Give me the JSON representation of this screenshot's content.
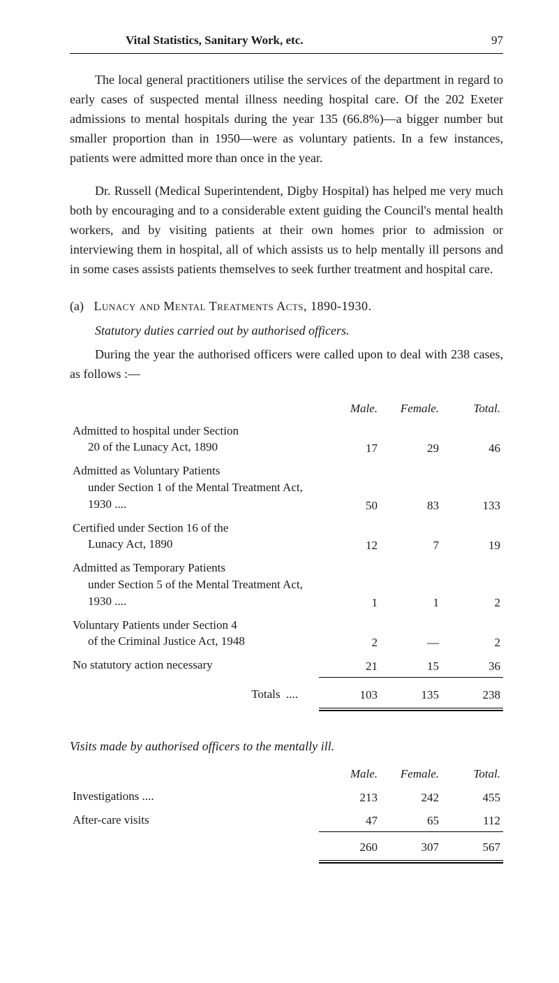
{
  "header": {
    "running_title": "Vital Statistics, Sanitary Work, etc.",
    "page_number": "97"
  },
  "paragraphs": {
    "p1": "The local general practitioners utilise the services of the department in regard to early cases of suspected mental illness needing hospital care. Of the 202 Exeter admissions to mental hospitals during the year 135 (66.8%)—a bigger number but smaller proportion than in 1950—were as voluntary patients. In a few instances, patients were admitted more than once in the year.",
    "p2": "Dr. Russell (Medical Superintendent, Digby Hospital) has helped me very much both by encouraging and to a considerable extent guiding the Council's mental health workers, and by visiting patients at their own homes prior to admission or interviewing them in hospital, all of which assists us to help mentally ill persons and in some cases assists patients themselves to seek further treatment and hospital care."
  },
  "section_a": {
    "label": "(a)",
    "title": "Lunacy and Mental Treatments Acts, 1890-1930.",
    "subtitle": "Statutory duties carried out by authorised officers.",
    "intro": "During the year the authorised officers were called upon to deal with 238 cases, as follows :—",
    "columns": {
      "male": "Male.",
      "female": "Female.",
      "total": "Total."
    },
    "rows": [
      {
        "desc_l1": "Admitted to hospital under Section",
        "desc_l2": "20 of the Lunacy Act, 1890",
        "male": "17",
        "female": "29",
        "total": "46"
      },
      {
        "desc_l1": "Admitted as Voluntary Patients",
        "desc_l2": "under Section 1 of the Mental Treatment Act, 1930 ....",
        "male": "50",
        "female": "83",
        "total": "133"
      },
      {
        "desc_l1": "Certified under Section 16 of the",
        "desc_l2": "Lunacy Act, 1890",
        "male": "12",
        "female": "7",
        "total": "19"
      },
      {
        "desc_l1": "Admitted as Temporary Patients",
        "desc_l2": "under Section 5 of the Mental Treatment Act, 1930 ....",
        "male": "1",
        "female": "1",
        "total": "2"
      },
      {
        "desc_l1": "Voluntary Patients under Section 4",
        "desc_l2": "of the Criminal Justice Act, 1948",
        "male": "2",
        "female": "—",
        "total": "2"
      },
      {
        "desc_l1": "No statutory action necessary",
        "desc_l2": "",
        "male": "21",
        "female": "15",
        "total": "36"
      }
    ],
    "totals": {
      "label": "Totals",
      "male": "103",
      "female": "135",
      "total": "238"
    }
  },
  "visits": {
    "title": "Visits made by authorised officers to the mentally ill.",
    "columns": {
      "male": "Male.",
      "female": "Female.",
      "total": "Total."
    },
    "rows": [
      {
        "desc": "Investigations ....",
        "male": "213",
        "female": "242",
        "total": "455"
      },
      {
        "desc": "After-care visits",
        "male": "47",
        "female": "65",
        "total": "112"
      }
    ],
    "totals": {
      "male": "260",
      "female": "307",
      "total": "567"
    }
  }
}
